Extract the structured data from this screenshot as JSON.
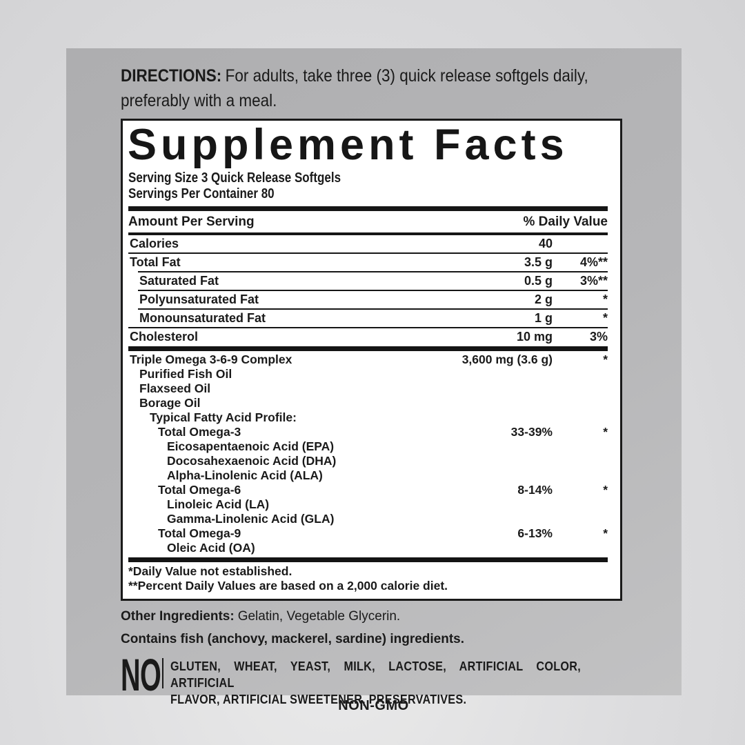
{
  "directions": {
    "heading": "DIRECTIONS:",
    "line1_rest": "For adults, take three (3) quick release softgels daily,",
    "line2": "preferably with a meal."
  },
  "supplement_facts": {
    "title": "Supplement Facts",
    "serving_size": "Serving Size 3 Quick Release Softgels",
    "servings_per_container": "Servings Per Container 80",
    "header": {
      "amount": "Amount Per Serving",
      "daily_value": "% Daily Value"
    },
    "rows": [
      {
        "name": "Calories",
        "amount": "40",
        "dv": "",
        "indent": 0,
        "section": "macro",
        "sep": "thin"
      },
      {
        "name": "Total Fat",
        "amount": "3.5 g",
        "dv": "4%**",
        "indent": 0,
        "section": "macro",
        "sep": "thin-ind"
      },
      {
        "name": "Saturated Fat",
        "amount": "0.5 g",
        "dv": "3%**",
        "indent": 1,
        "section": "macro",
        "sep": "thin-ind"
      },
      {
        "name": "Polyunsaturated Fat",
        "amount": "2 g",
        "dv": "*",
        "indent": 1,
        "section": "macro",
        "sep": "thin-ind"
      },
      {
        "name": "Monounsaturated Fat",
        "amount": "1 g",
        "dv": "*",
        "indent": 1,
        "section": "macro",
        "sep": "thin"
      },
      {
        "name": "Cholesterol",
        "amount": "10 mg",
        "dv": "3%",
        "indent": 0,
        "section": "macro",
        "sep": "thick"
      },
      {
        "name": "Triple Omega 3-6-9 Complex",
        "amount": "3,600 mg (3.6 g)",
        "dv": "*",
        "indent": 0,
        "section": "complex",
        "sep": "none"
      },
      {
        "name": "Purified Fish Oil",
        "amount": "",
        "dv": "",
        "indent": 1,
        "section": "complex",
        "sep": "none"
      },
      {
        "name": "Flaxseed Oil",
        "amount": "",
        "dv": "",
        "indent": 1,
        "section": "complex",
        "sep": "none"
      },
      {
        "name": "Borage Oil",
        "amount": "",
        "dv": "",
        "indent": 1,
        "section": "complex",
        "sep": "none"
      },
      {
        "name": "Typical Fatty Acid Profile:",
        "amount": "",
        "dv": "",
        "indent": 2,
        "section": "complex",
        "sep": "none"
      },
      {
        "name": "Total Omega-3",
        "amount": "33-39%",
        "dv": "*",
        "indent": 3,
        "section": "complex",
        "sep": "none"
      },
      {
        "name": "Eicosapentaenoic Acid (EPA)",
        "amount": "",
        "dv": "",
        "indent": 4,
        "section": "complex",
        "sep": "none"
      },
      {
        "name": "Docosahexaenoic Acid (DHA)",
        "amount": "",
        "dv": "",
        "indent": 4,
        "section": "complex",
        "sep": "none"
      },
      {
        "name": "Alpha-Linolenic Acid (ALA)",
        "amount": "",
        "dv": "",
        "indent": 4,
        "section": "complex",
        "sep": "none"
      },
      {
        "name": "Total Omega-6",
        "amount": "8-14%",
        "dv": "*",
        "indent": 3,
        "section": "complex",
        "sep": "none"
      },
      {
        "name": "Linoleic Acid (LA)",
        "amount": "",
        "dv": "",
        "indent": 4,
        "section": "complex",
        "sep": "none"
      },
      {
        "name": "Gamma-Linolenic Acid (GLA)",
        "amount": "",
        "dv": "",
        "indent": 4,
        "section": "complex",
        "sep": "none"
      },
      {
        "name": "Total Omega-9",
        "amount": "6-13%",
        "dv": "*",
        "indent": 3,
        "section": "complex",
        "sep": "none"
      },
      {
        "name": "Oleic Acid (OA)",
        "amount": "",
        "dv": "",
        "indent": 4,
        "section": "complex",
        "sep": "thick"
      }
    ],
    "footnotes": [
      "*Daily Value not established.",
      "**Percent Daily Values are based on a 2,000 calorie diet."
    ]
  },
  "other_ingredients": {
    "heading": "Other Ingredients:",
    "text": "Gelatin, Vegetable Glycerin."
  },
  "contains_statement": "Contains fish (anchovy, mackerel, sardine) ingredients.",
  "free_of": {
    "no_label": "NO",
    "lines": [
      "GLUTEN, WHEAT, YEAST, MILK, LACTOSE, ARTIFICIAL COLOR, ARTIFICIAL",
      "FLAVOR, ARTIFICIAL SWEETENER, PRESERVATIVES."
    ]
  },
  "non_gmo": "NON-GMO",
  "colors": {
    "panel_gray": "#b3b3b5",
    "background_gray": "#dcdcde",
    "box_background": "#ffffff",
    "ink": "#1a1a1a"
  }
}
